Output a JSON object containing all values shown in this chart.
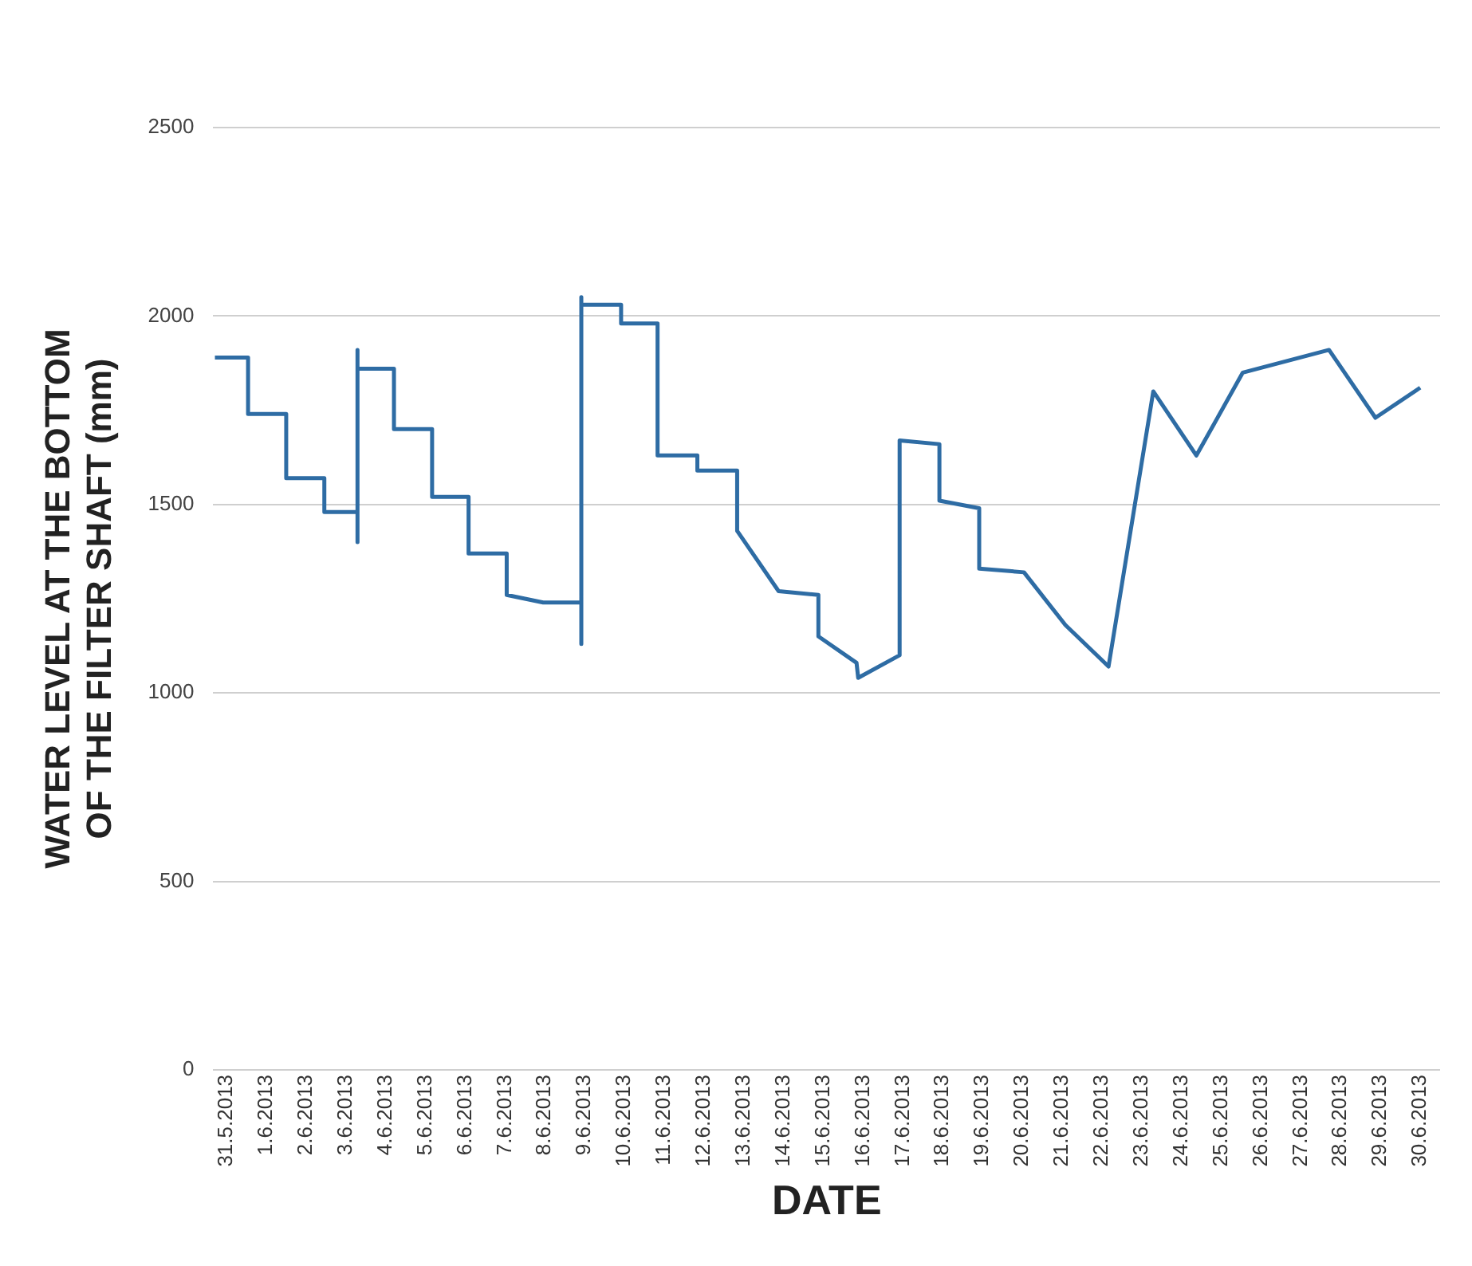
{
  "chart_data": {
    "type": "line",
    "xlabel": "DATE",
    "ylabel": "WATER LEVEL AT THE BOTTOM OF THE FILTER SHAFT (mm)",
    "series": [
      {
        "color": "#2e6ca4",
        "x": [
          "2013-05-30T17:00",
          "2013-05-31T13:00",
          "2013-05-31T13:00",
          "2013-06-01T12:00",
          "2013-06-01T12:00",
          "2013-06-02T11:00",
          "2013-06-02T11:00",
          "2013-06-03T07:00",
          "2013-06-03T07:00",
          "2013-06-03T07:00",
          "2013-06-03T07:00",
          "2013-06-04T05:00",
          "2013-06-04T05:00",
          "2013-06-05T04:00",
          "2013-06-05T04:00",
          "2013-06-06T02:00",
          "2013-06-06T02:00",
          "2013-06-07T01:00",
          "2013-06-07T01:00",
          "2013-06-07T23:00",
          "2013-06-08T22:00",
          "2013-06-08T22:00",
          "2013-06-08T22:00",
          "2013-06-08T22:00",
          "2013-06-09T22:00",
          "2013-06-09T22:00",
          "2013-06-10T20:00",
          "2013-06-10T20:00",
          "2013-06-11T20:00",
          "2013-06-11T20:00",
          "2013-06-12T20:00",
          "2013-06-12T20:00",
          "2013-06-13T21:00",
          "2013-06-14T21:00",
          "2013-06-14T21:00",
          "2013-06-15T20:00",
          "2013-06-15T21:00",
          "2013-06-16T22:00",
          "2013-06-16T22:00",
          "2013-06-17T22:00",
          "2013-06-17T22:00",
          "2013-06-18T22:00",
          "2013-06-18T22:00",
          "2013-06-20T01:00",
          "2013-06-21T02:00",
          "2013-06-22T04:00",
          "2013-06-23T07:00",
          "2013-06-24T09:00",
          "2013-06-25T13:00",
          "2013-06-27T17:00",
          "2013-06-28T21:00",
          "2013-06-30T00:00"
        ],
        "values": [
          1890,
          1890,
          1740,
          1740,
          1570,
          1570,
          1480,
          1480,
          1400,
          1910,
          1860,
          1860,
          1700,
          1700,
          1520,
          1520,
          1370,
          1370,
          1260,
          1240,
          1240,
          1130,
          2050,
          2030,
          2030,
          1980,
          1980,
          1630,
          1630,
          1590,
          1590,
          1430,
          1270,
          1260,
          1150,
          1080,
          1040,
          1100,
          1670,
          1660,
          1510,
          1490,
          1330,
          1320,
          1180,
          1070,
          1800,
          1630,
          1850,
          1910,
          1730,
          1810
        ]
      }
    ],
    "xlim": [
      "2013-05-30T16:00",
      "2013-06-30T12:00"
    ],
    "xticks": [
      {
        "value": "2013-05-31",
        "label": "31.5.2013"
      },
      {
        "value": "2013-06-01",
        "label": "1.6.2013"
      },
      {
        "value": "2013-06-02",
        "label": "2.6.2013"
      },
      {
        "value": "2013-06-03",
        "label": "3.6.2013"
      },
      {
        "value": "2013-06-04",
        "label": "4.6.2013"
      },
      {
        "value": "2013-06-05",
        "label": "5.6.2013"
      },
      {
        "value": "2013-06-06",
        "label": "6.6.2013"
      },
      {
        "value": "2013-06-07",
        "label": "7.6.2013"
      },
      {
        "value": "2013-06-08",
        "label": "8.6.2013"
      },
      {
        "value": "2013-06-09",
        "label": "9.6.2013"
      },
      {
        "value": "2013-06-10",
        "label": "10.6.2013"
      },
      {
        "value": "2013-06-11",
        "label": "11.6.2013"
      },
      {
        "value": "2013-06-12",
        "label": "12.6.2013"
      },
      {
        "value": "2013-06-13",
        "label": "13.6.2013"
      },
      {
        "value": "2013-06-14",
        "label": "14.6.2013"
      },
      {
        "value": "2013-06-15",
        "label": "15.6.2013"
      },
      {
        "value": "2013-06-16",
        "label": "16.6.2013"
      },
      {
        "value": "2013-06-17",
        "label": "17.6.2013"
      },
      {
        "value": "2013-06-18",
        "label": "18.6.2013"
      },
      {
        "value": "2013-06-19",
        "label": "19.6.2013"
      },
      {
        "value": "2013-06-20",
        "label": "20.6.2013"
      },
      {
        "value": "2013-06-21",
        "label": "21.6.2013"
      },
      {
        "value": "2013-06-22",
        "label": "22.6.2013"
      },
      {
        "value": "2013-06-23",
        "label": "23.6.2013"
      },
      {
        "value": "2013-06-24",
        "label": "24.6.2013"
      },
      {
        "value": "2013-06-25",
        "label": "25.6.2013"
      },
      {
        "value": "2013-06-26",
        "label": "26.6.2013"
      },
      {
        "value": "2013-06-27",
        "label": "27.6.2013"
      },
      {
        "value": "2013-06-28",
        "label": "28.6.2013"
      },
      {
        "value": "2013-06-29",
        "label": "29.6.2013"
      },
      {
        "value": "2013-06-30",
        "label": "30.6.2013"
      }
    ],
    "ylim": [
      0,
      2500
    ],
    "yticks": [
      0,
      500,
      1000,
      1500,
      2000,
      2500
    ],
    "grid": "y",
    "legend": false,
    "marker": "none",
    "line_style": "solid"
  }
}
